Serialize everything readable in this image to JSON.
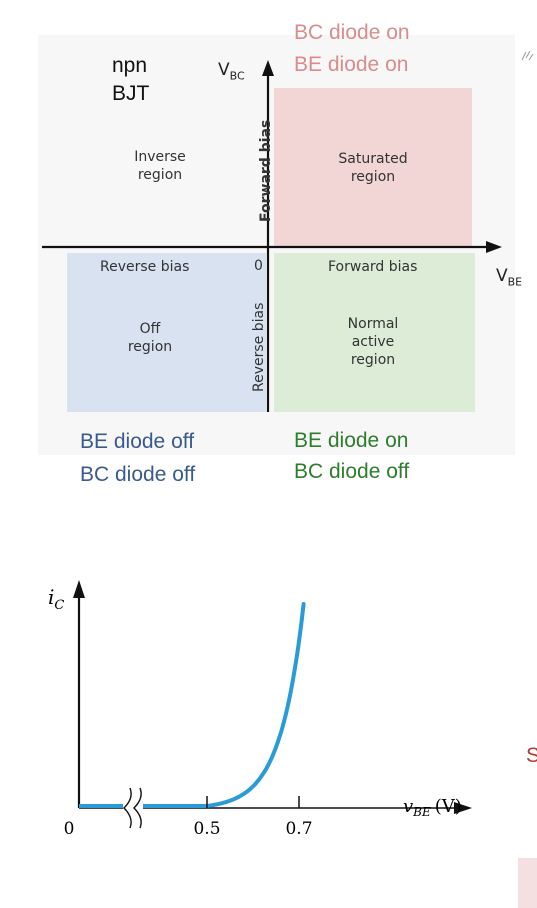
{
  "quadrant_diagram": {
    "device": [
      "npn",
      "BJT"
    ],
    "axis_y_label": {
      "main": "V",
      "sub": "BC"
    },
    "axis_x_label": {
      "main": "V",
      "sub": "BE"
    },
    "origin_label": "0",
    "bias_labels": {
      "y_positive": "Forward bias",
      "y_negative": "Reverse bias",
      "x_negative": "Reverse bias",
      "x_positive": "Forward bias"
    },
    "regions": {
      "inverse": [
        "Inverse",
        "region"
      ],
      "saturated": [
        "Saturated",
        "region"
      ],
      "off": [
        "Off",
        "region"
      ],
      "active": [
        "Normal",
        "active",
        "region"
      ]
    },
    "annotations": {
      "top_right": [
        "BC diode on",
        "BE diode on"
      ],
      "bottom_left": [
        "BE diode off",
        "BC diode off"
      ],
      "bottom_right": [
        "BE diode on",
        "BC diode off"
      ]
    },
    "colors": {
      "saturated_fill": "#f2d5d5",
      "off_fill": "#d9e2f1",
      "active_fill": "#dcecd7",
      "top_right_text": "#d98c8c",
      "bottom_left_text": "#3b5a8c",
      "bottom_right_text": "#2e7d2e"
    }
  },
  "transfer_curve": {
    "y_axis_label": {
      "main": "i",
      "sub": "C"
    },
    "x_axis_label": {
      "main": "v",
      "sub": "BE",
      "unit": "(V)"
    },
    "x_tick_labels": [
      "0",
      "0.5",
      "0.7"
    ],
    "curve_color": "#2a9ad8"
  },
  "chart_data": {
    "type": "line",
    "title": "",
    "xlabel": "vBE (V)",
    "ylabel": "iC",
    "x_ticks": [
      0,
      0.5,
      0.7
    ],
    "axis_break_on_x": true,
    "series": [
      {
        "x": [
          0,
          0.5,
          0.55,
          0.6,
          0.65,
          0.7,
          0.71
        ],
        "y": [
          0,
          0,
          0.006,
          0.07,
          0.28,
          0.8,
          1.0
        ]
      }
    ]
  },
  "edge_fragments": {
    "right_letter": "S",
    "right_letter_color": "#b03a3a"
  }
}
